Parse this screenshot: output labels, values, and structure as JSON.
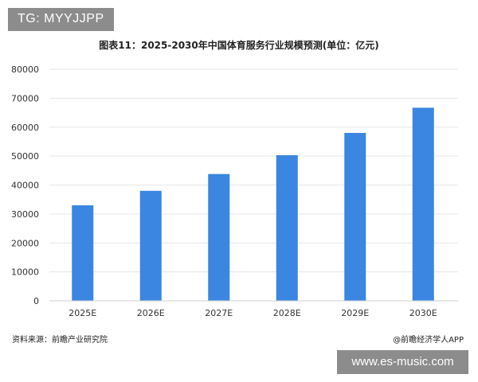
{
  "header": {
    "tg_tag": "TG: MYYJJPP"
  },
  "chart_data": {
    "type": "bar",
    "title": "图表11：2025-2030年中国体育服务行业规模预测(单位：亿元)",
    "categories": [
      "2025E",
      "2026E",
      "2027E",
      "2028E",
      "2029E",
      "2030E"
    ],
    "values": [
      33000,
      38000,
      43800,
      50300,
      58000,
      66700
    ],
    "yticks": [
      "0",
      "10000",
      "20000",
      "30000",
      "40000",
      "50000",
      "60000",
      "70000",
      "80000"
    ],
    "ylim": [
      0,
      80000
    ],
    "bar_color": "#3a86e0",
    "grid": true,
    "legend": "none"
  },
  "footer": {
    "source": "资料来源：前瞻产业研究院",
    "credit": "@前瞻经济学人APP"
  },
  "site_tag": "www.es-music.com",
  "colors": {
    "bar": "#3a86e0",
    "grid": "#e6e6e6",
    "badge": "#8c8c8c"
  }
}
